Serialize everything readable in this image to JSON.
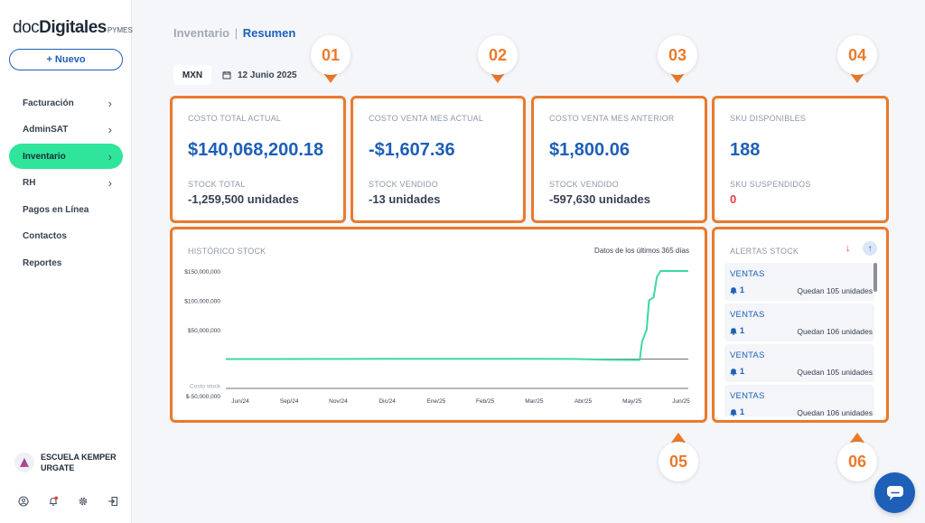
{
  "sidebar": {
    "logo": {
      "part1": "doc",
      "part2": "Digitales",
      "part3": "PYMES"
    },
    "new_button": "+ Nuevo",
    "items": [
      {
        "label": "Facturación",
        "has_chevron": true
      },
      {
        "label": "AdminSAT",
        "has_chevron": true
      },
      {
        "label": "Inventario",
        "has_chevron": true,
        "active": true
      },
      {
        "label": "RH",
        "has_chevron": true
      },
      {
        "label": "Pagos en Línea",
        "has_chevron": false
      },
      {
        "label": "Contactos",
        "has_chevron": false
      },
      {
        "label": "Reportes",
        "has_chevron": false
      }
    ],
    "chevron": "›",
    "org_name": "ESCUELA KEMPER URGATE",
    "bottom_icons": [
      "user-icon",
      "bell-icon",
      "gear-icon",
      "logout-icon"
    ]
  },
  "header": {
    "section": "Inventario",
    "separator": "|",
    "page": "Resumen",
    "currency": "MXN",
    "date": "12 Junio 2025"
  },
  "kpis": [
    {
      "badge": "01",
      "label": "COSTO TOTAL ACTUAL",
      "value": "$140,068,200.18",
      "sublabel": "STOCK TOTAL",
      "subvalue": "-1,259,500 unidades"
    },
    {
      "badge": "02",
      "label": "COSTO VENTA MES ACTUAL",
      "value": "-$1,607.36",
      "sublabel": "STOCK VENDIDO",
      "subvalue": "-13 unidades"
    },
    {
      "badge": "03",
      "label": "COSTO VENTA MES ANTERIOR",
      "value": "$1,800.06",
      "sublabel": "STOCK VENDIDO",
      "subvalue": "-597,630 unidades"
    },
    {
      "badge": "04",
      "label": "SKU DISPONIBLES",
      "value": "188",
      "sublabel": "SKU SUSPENDIDOS",
      "subvalue": "0"
    }
  ],
  "history": {
    "badge": "05",
    "title": "HISTÓRICO STOCK",
    "range_label": "Datos de los últimos 365 días"
  },
  "alerts": {
    "badge": "06",
    "title": "ALERTAS STOCK",
    "sort_down": "↓",
    "sort_up": "↑",
    "items": [
      {
        "name": "VENTAS",
        "count": "1",
        "message": "Quedan 105 unidades"
      },
      {
        "name": "VENTAS",
        "count": "1",
        "message": "Quedan 106 unidades"
      },
      {
        "name": "VENTAS",
        "count": "1",
        "message": "Quedan 105 unidades"
      },
      {
        "name": "VENTAS",
        "count": "1",
        "message": "Quedan 106 unidades"
      }
    ]
  },
  "colors": {
    "brand_blue": "#1e5fb8",
    "accent_green": "#2ee59b",
    "highlight_orange": "#ea7a2c",
    "line_green": "#3dd9a0",
    "negative_red": "#e53e3e"
  },
  "chart_data": {
    "type": "line",
    "title": "HISTÓRICO STOCK",
    "subtitle": "Datos de los últimos 365 días",
    "x": [
      "Jun/24",
      "Sep/24",
      "Nov/24",
      "Dic/24",
      "Ene/25",
      "Feb/25",
      "Mar/25",
      "Abr/25",
      "May/25",
      "Jun/25"
    ],
    "y_ticks": [
      {
        "value": 150000000,
        "label": "$150,000,000"
      },
      {
        "value": 100000000,
        "label": "$100,000,000"
      },
      {
        "value": 50000000,
        "label": "$50,000,000"
      },
      {
        "value": 0,
        "label": "Costo stock"
      },
      {
        "value": -50000000,
        "label": "$-50,000,000"
      }
    ],
    "ylim": [
      -50000000,
      150000000
    ],
    "series": [
      {
        "color": "#3dd9a0",
        "points": [
          {
            "t": 0.0,
            "v": 0
          },
          {
            "t": 0.1,
            "v": 0
          },
          {
            "t": 0.2,
            "v": 200000
          },
          {
            "t": 0.35,
            "v": 400000
          },
          {
            "t": 0.5,
            "v": 500000
          },
          {
            "t": 0.62,
            "v": 500000
          },
          {
            "t": 0.75,
            "v": 200000
          },
          {
            "t": 0.82,
            "v": -1000000
          },
          {
            "t": 0.895,
            "v": -1500000
          },
          {
            "t": 0.9,
            "v": 30000000
          },
          {
            "t": 0.91,
            "v": 50000000
          },
          {
            "t": 0.915,
            "v": 100000000
          },
          {
            "t": 0.925,
            "v": 105000000
          },
          {
            "t": 0.932,
            "v": 140000000
          },
          {
            "t": 0.94,
            "v": 150000000
          },
          {
            "t": 1.0,
            "v": 150000000
          }
        ]
      }
    ],
    "grid": false
  }
}
